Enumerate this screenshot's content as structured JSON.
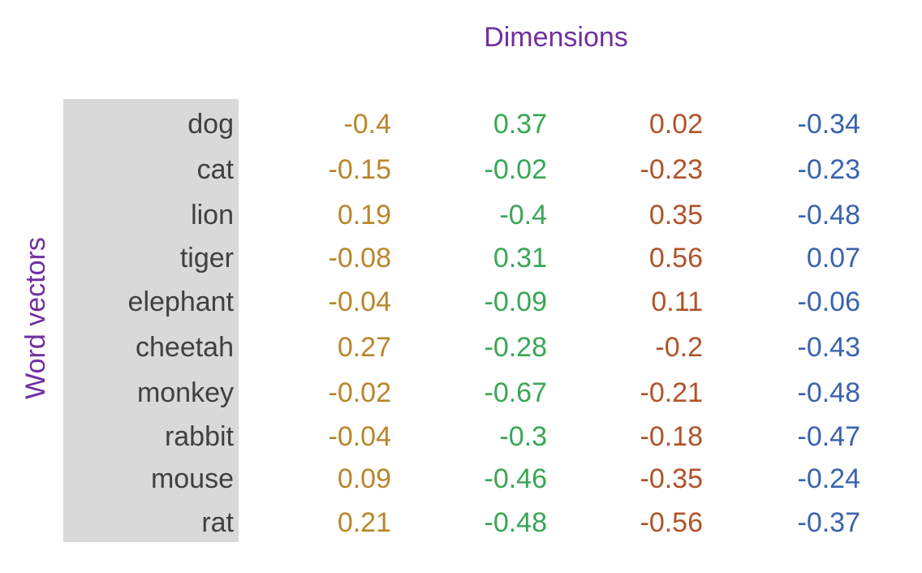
{
  "chart_data": {
    "type": "table",
    "column_header": "Dimensions",
    "row_header": "Word vectors",
    "rows": [
      {
        "label": "dog",
        "values": [
          -0.4,
          0.37,
          0.02,
          -0.34
        ],
        "display": [
          "-0.4",
          "0.37",
          "0.02",
          "-0.34"
        ]
      },
      {
        "label": "cat",
        "values": [
          -0.15,
          -0.02,
          -0.23,
          -0.23
        ],
        "display": [
          "-0.15",
          "-0.02",
          "-0.23",
          "-0.23"
        ]
      },
      {
        "label": "lion",
        "values": [
          0.19,
          -0.4,
          0.35,
          -0.48
        ],
        "display": [
          "0.19",
          "-0.4",
          "0.35",
          "-0.48"
        ]
      },
      {
        "label": "tiger",
        "values": [
          -0.08,
          0.31,
          0.56,
          0.07
        ],
        "display": [
          "-0.08",
          "0.31",
          "0.56",
          "0.07"
        ]
      },
      {
        "label": "elephant",
        "values": [
          -0.04,
          -0.09,
          0.11,
          -0.06
        ],
        "display": [
          "-0.04",
          "-0.09",
          "0.11",
          "-0.06"
        ]
      },
      {
        "label": "cheetah",
        "values": [
          0.27,
          -0.28,
          -0.2,
          -0.43
        ],
        "display": [
          "0.27",
          "-0.28",
          "-0.2",
          "-0.43"
        ]
      },
      {
        "label": "monkey",
        "values": [
          -0.02,
          -0.67,
          -0.21,
          -0.48
        ],
        "display": [
          "-0.02",
          "-0.67",
          "-0.21",
          "-0.48"
        ]
      },
      {
        "label": "rabbit",
        "values": [
          -0.04,
          -0.3,
          -0.18,
          -0.47
        ],
        "display": [
          "-0.04",
          "-0.3",
          "-0.18",
          "-0.47"
        ]
      },
      {
        "label": "mouse",
        "values": [
          0.09,
          -0.46,
          -0.35,
          -0.24
        ],
        "display": [
          "0.09",
          "-0.46",
          "-0.35",
          "-0.24"
        ]
      },
      {
        "label": "rat",
        "values": [
          0.21,
          -0.48,
          -0.56,
          -0.37
        ],
        "display": [
          "0.21",
          "-0.48",
          "-0.56",
          "-0.37"
        ]
      }
    ],
    "column_colors": [
      "#b8862b",
      "#3aa655",
      "#b0532a",
      "#3a63ad"
    ],
    "header_color": "#7030a0",
    "label_color": "#404040",
    "label_background": "#d9d9d9"
  }
}
